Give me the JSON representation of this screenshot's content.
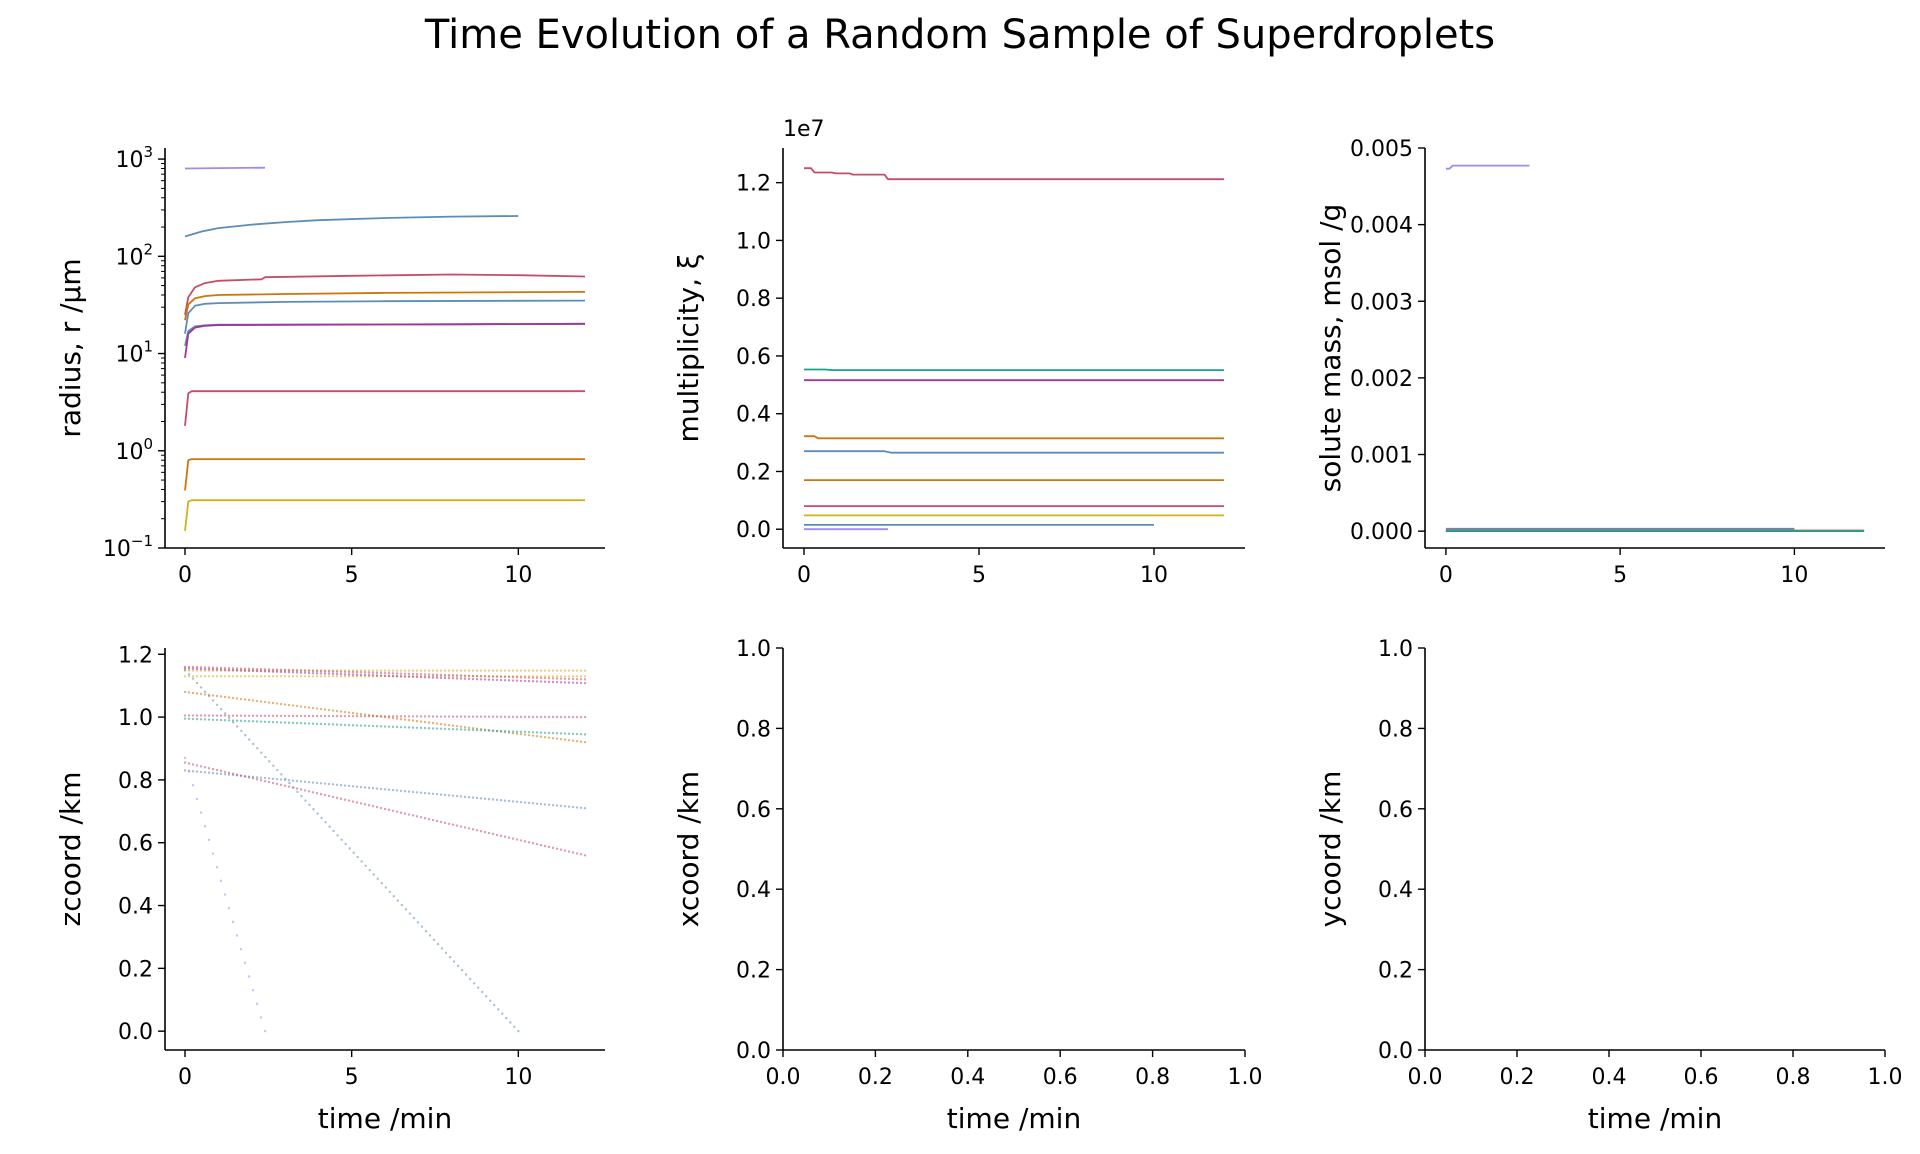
{
  "figure": {
    "title": "Time Evolution of a Random Sample of Superdroplets"
  },
  "chart_data": [
    {
      "id": "radius",
      "type": "line",
      "title": "",
      "xlabel": "",
      "ylabel": "radius, r /µm",
      "xlim": [
        -0.6,
        12.6
      ],
      "ylim": [
        0.1,
        1300
      ],
      "yscale": "log",
      "xticks": [
        0,
        5,
        10
      ],
      "xtick_labels": [
        "0",
        "5",
        "10"
      ],
      "yticks": [
        0.1,
        1,
        10,
        100,
        1000
      ],
      "ytick_labels": [
        [
          "10",
          "−1"
        ],
        [
          "10",
          "0"
        ],
        [
          "10",
          "1"
        ],
        [
          "10",
          "2"
        ],
        [
          "10",
          "3"
        ]
      ],
      "series": [
        {
          "color": "#9b8df0",
          "x": [
            0,
            1,
            2.4
          ],
          "y": [
            800,
            808,
            815
          ]
        },
        {
          "color": "#5b8db8",
          "x": [
            0,
            0.5,
            1,
            2,
            3,
            4,
            6,
            8,
            10
          ],
          "y": [
            160,
            180,
            195,
            212,
            225,
            235,
            248,
            256,
            260
          ]
        },
        {
          "color": "#c44e6a",
          "x": [
            0,
            0.1,
            0.3,
            0.6,
            1,
            2.3,
            2.4,
            5,
            8,
            10,
            12
          ],
          "y": [
            25,
            38,
            48,
            53,
            56,
            58,
            61,
            63,
            65,
            64,
            62
          ]
        },
        {
          "color": "#d0750a",
          "x": [
            0,
            0.1,
            0.3,
            0.6,
            1,
            3,
            6,
            12
          ],
          "y": [
            22,
            32,
            37,
            39,
            40,
            41,
            42,
            43
          ]
        },
        {
          "color": "#5b8db8",
          "x": [
            0,
            0.1,
            0.3,
            0.6,
            1,
            3,
            6,
            12
          ],
          "y": [
            16,
            26,
            31,
            32.5,
            33,
            34,
            34.5,
            35
          ]
        },
        {
          "color": "#5b8db8",
          "x": [
            0,
            0.1,
            0.3,
            0.6,
            1,
            4,
            8,
            12
          ],
          "y": [
            12,
            17,
            19,
            19.5,
            19.8,
            19.9,
            20,
            20.2
          ]
        },
        {
          "color": "#a0359a",
          "x": [
            0,
            0.1,
            0.3,
            0.6,
            1,
            4,
            8,
            12
          ],
          "y": [
            9,
            16,
            18.5,
            19.3,
            19.6,
            19.8,
            20,
            20.2
          ]
        },
        {
          "color": "#c44e6a",
          "x": [
            0,
            0.1,
            0.2,
            12
          ],
          "y": [
            1.8,
            3.9,
            4.1,
            4.1
          ]
        },
        {
          "color": "#d0750a",
          "x": [
            0,
            0.1,
            0.2,
            12
          ],
          "y": [
            0.39,
            0.8,
            0.82,
            0.82
          ]
        },
        {
          "color": "#d4b017",
          "x": [
            0,
            0.1,
            0.2,
            12
          ],
          "y": [
            0.15,
            0.3,
            0.31,
            0.31
          ]
        }
      ]
    },
    {
      "id": "multiplicity",
      "type": "line",
      "title": "",
      "xlabel": "",
      "ylabel": "multiplicity, ξ",
      "offset_text": "1e7",
      "xlim": [
        -0.6,
        12.6
      ],
      "ylim": [
        -0.065,
        1.32
      ],
      "xticks": [
        0,
        5,
        10
      ],
      "xtick_labels": [
        "0",
        "5",
        "10"
      ],
      "yticks": [
        0.0,
        0.2,
        0.4,
        0.6,
        0.8,
        1.0,
        1.2
      ],
      "ytick_labels": [
        "0.0",
        "0.2",
        "0.4",
        "0.6",
        "0.8",
        "1.0",
        "1.2"
      ],
      "series": [
        {
          "color": "#c44e6a",
          "x": [
            0,
            0.2,
            0.3,
            0.8,
            0.9,
            1.3,
            1.4,
            2.3,
            2.4,
            12
          ],
          "y": [
            1.25,
            1.25,
            1.235,
            1.235,
            1.232,
            1.232,
            1.228,
            1.228,
            1.212,
            1.212
          ]
        },
        {
          "color": "#1aa088",
          "x": [
            0,
            0.6,
            0.8,
            12
          ],
          "y": [
            0.553,
            0.553,
            0.551,
            0.551
          ]
        },
        {
          "color": "#a0359a",
          "x": [
            0,
            12
          ],
          "y": [
            0.516,
            0.516
          ]
        },
        {
          "color": "#d0750a",
          "x": [
            0,
            0.3,
            0.4,
            12
          ],
          "y": [
            0.322,
            0.322,
            0.315,
            0.315
          ]
        },
        {
          "color": "#5b8db8",
          "x": [
            0,
            2.3,
            2.5,
            12
          ],
          "y": [
            0.27,
            0.27,
            0.265,
            0.265
          ]
        },
        {
          "color": "#d0750a",
          "x": [
            0,
            12
          ],
          "y": [
            0.17,
            0.17
          ]
        },
        {
          "color": "#c44e6a",
          "x": [
            0,
            12
          ],
          "y": [
            0.08,
            0.08
          ]
        },
        {
          "color": "#d4b017",
          "x": [
            0,
            12
          ],
          "y": [
            0.048,
            0.048
          ]
        },
        {
          "color": "#5b8db8",
          "x": [
            0,
            10
          ],
          "y": [
            0.015,
            0.015
          ]
        },
        {
          "color": "#9b8df0",
          "x": [
            0,
            2.4
          ],
          "y": [
            0.0,
            0.0
          ]
        }
      ]
    },
    {
      "id": "solute-mass",
      "type": "line",
      "title": "",
      "xlabel": "",
      "ylabel": "solute mass, msol /g",
      "xlim": [
        -0.6,
        12.6
      ],
      "ylim": [
        -0.00022,
        0.005
      ],
      "xticks": [
        0,
        5,
        10
      ],
      "xtick_labels": [
        "0",
        "5",
        "10"
      ],
      "yticks": [
        0.0,
        0.001,
        0.002,
        0.003,
        0.004,
        0.005
      ],
      "ytick_labels": [
        "0.000",
        "0.001",
        "0.002",
        "0.003",
        "0.004",
        "0.005"
      ],
      "series": [
        {
          "color": "#9b8df0",
          "x": [
            0,
            0.1,
            0.2,
            2.4
          ],
          "y": [
            0.00473,
            0.00473,
            0.00477,
            0.00477
          ]
        },
        {
          "color": "#5b8db8",
          "x": [
            0,
            10
          ],
          "y": [
            3e-05,
            3e-05
          ]
        },
        {
          "color": "#c44e6a",
          "x": [
            0,
            12
          ],
          "y": [
            8e-06,
            8e-06
          ]
        },
        {
          "color": "#d0750a",
          "x": [
            0,
            12
          ],
          "y": [
            3e-06,
            3e-06
          ]
        },
        {
          "color": "#1aa088",
          "x": [
            0,
            12
          ],
          "y": [
            1e-06,
            1e-06
          ]
        }
      ]
    },
    {
      "id": "zcoord",
      "type": "scatter",
      "title": "",
      "xlabel": "time /min",
      "ylabel": "zcoord /km",
      "xlim": [
        -0.6,
        12.6
      ],
      "ylim": [
        -0.06,
        1.22
      ],
      "xticks": [
        0,
        5,
        10
      ],
      "xtick_labels": [
        "0",
        "5",
        "10"
      ],
      "yticks": [
        0.0,
        0.2,
        0.4,
        0.6,
        0.8,
        1.0,
        1.2
      ],
      "ytick_labels": [
        "0.0",
        "0.2",
        "0.4",
        "0.6",
        "0.8",
        "1.0",
        "1.2"
      ],
      "series": [
        {
          "color": "#d4b017",
          "x": [
            0,
            12
          ],
          "y": [
            1.148,
            1.148
          ]
        },
        {
          "color": "#d4b017",
          "x": [
            0,
            12
          ],
          "y": [
            1.13,
            1.13
          ]
        },
        {
          "color": "#c44e6a",
          "x": [
            0,
            12
          ],
          "y": [
            1.16,
            1.12
          ]
        },
        {
          "color": "#a0359a",
          "x": [
            0,
            12
          ],
          "y": [
            1.155,
            1.108
          ]
        },
        {
          "color": "#d0750a",
          "x": [
            0,
            12
          ],
          "y": [
            1.08,
            0.92
          ]
        },
        {
          "color": "#c44e6a",
          "x": [
            0,
            12
          ],
          "y": [
            1.005,
            1.0
          ]
        },
        {
          "color": "#1aa088",
          "x": [
            0,
            12
          ],
          "y": [
            0.995,
            0.945
          ]
        },
        {
          "color": "#5b8db8",
          "x": [
            0,
            12
          ],
          "y": [
            0.83,
            0.71
          ]
        },
        {
          "color": "#c44e6a",
          "x": [
            0,
            12
          ],
          "y": [
            0.855,
            0.56
          ]
        },
        {
          "color": "#5b8db8",
          "x": [
            0,
            10
          ],
          "y": [
            1.15,
            0.0
          ]
        },
        {
          "color": "#9b8df0",
          "x": [
            0,
            2.4
          ],
          "y": [
            0.87,
            0.0
          ]
        }
      ]
    },
    {
      "id": "xcoord",
      "type": "scatter",
      "title": "",
      "xlabel": "time /min",
      "ylabel": "xcoord /km",
      "xlim": [
        0,
        1
      ],
      "ylim": [
        0,
        1
      ],
      "xticks": [
        0,
        0.2,
        0.4,
        0.6,
        0.8,
        1.0
      ],
      "xtick_labels": [
        "0.0",
        "0.2",
        "0.4",
        "0.6",
        "0.8",
        "1.0"
      ],
      "yticks": [
        0,
        0.2,
        0.4,
        0.6,
        0.8,
        1.0
      ],
      "ytick_labels": [
        "0.0",
        "0.2",
        "0.4",
        "0.6",
        "0.8",
        "1.0"
      ],
      "series": []
    },
    {
      "id": "ycoord",
      "type": "scatter",
      "title": "",
      "xlabel": "time /min",
      "ylabel": "ycoord /km",
      "xlim": [
        0,
        1
      ],
      "ylim": [
        0,
        1
      ],
      "xticks": [
        0,
        0.2,
        0.4,
        0.6,
        0.8,
        1.0
      ],
      "xtick_labels": [
        "0.0",
        "0.2",
        "0.4",
        "0.6",
        "0.8",
        "1.0"
      ],
      "yticks": [
        0,
        0.2,
        0.4,
        0.6,
        0.8,
        1.0
      ],
      "ytick_labels": [
        "0.0",
        "0.2",
        "0.4",
        "0.6",
        "0.8",
        "1.0"
      ],
      "series": []
    }
  ]
}
